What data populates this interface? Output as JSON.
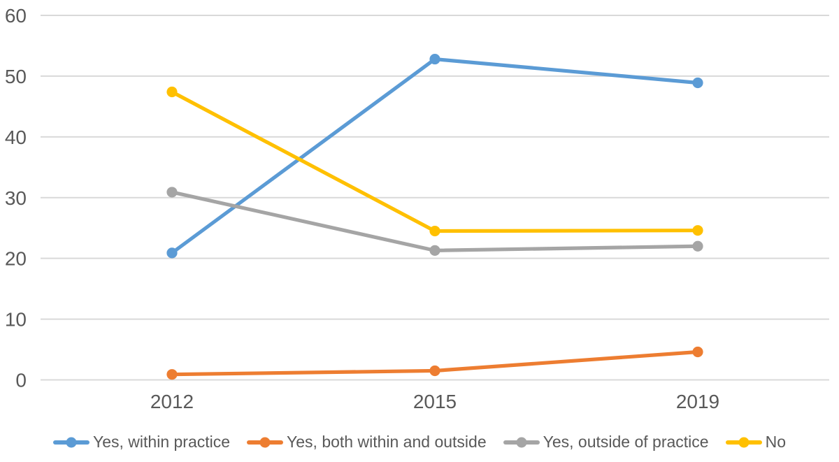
{
  "chart_data": {
    "type": "line",
    "title": "",
    "xlabel": "",
    "ylabel": "",
    "categories": [
      "2012",
      "2015",
      "2019"
    ],
    "series": [
      {
        "name": "Yes, within practice",
        "color": "#5B9BD5",
        "values": [
          20.9,
          52.8,
          48.9
        ]
      },
      {
        "name": "Yes, both within and outside",
        "color": "#ED7D31",
        "values": [
          0.9,
          1.5,
          4.6
        ]
      },
      {
        "name": "Yes, outside of practice",
        "color": "#A5A5A5",
        "values": [
          30.9,
          21.3,
          22.0
        ]
      },
      {
        "name": "No",
        "color": "#FFC000",
        "values": [
          47.4,
          24.5,
          24.6
        ]
      }
    ],
    "ylim": [
      0,
      60
    ],
    "yticks": [
      0,
      10,
      20,
      30,
      40,
      50,
      60
    ],
    "grid": true,
    "gridline_color": "#D9D9D9",
    "axis_label_color": "#595959",
    "background_color": "#FFFFFF",
    "legend_position": "bottom",
    "marker_style": "circle"
  }
}
